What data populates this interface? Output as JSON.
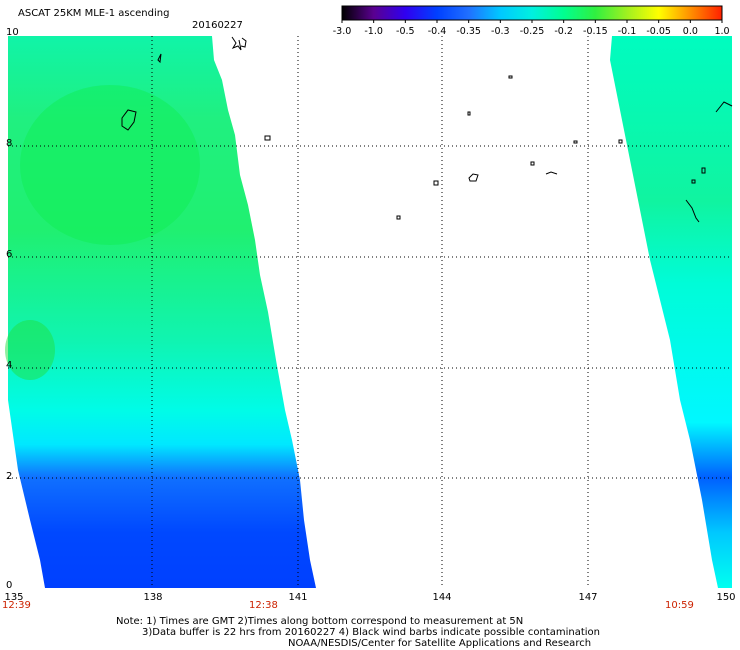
{
  "header": {
    "title": "ASCAT 25KM MLE-1 ascending",
    "date": "20160227"
  },
  "colorbar": {
    "labels": [
      "-3.0",
      "-1.0",
      "-0.5",
      "-0.4",
      "-0.35",
      "-0.3",
      "-0.25",
      "-0.2",
      "-0.15",
      "-0.1",
      "-0.05",
      "0.0",
      "1.0"
    ],
    "colors": [
      "#000000",
      "#5a0090",
      "#3000f0",
      "#0040ff",
      "#2070ff",
      "#00c8ff",
      "#00f0e0",
      "#00ff90",
      "#30f040",
      "#a0f020",
      "#ffff00",
      "#ff9000",
      "#ff2000"
    ]
  },
  "axes": {
    "x_ticks": [
      "135",
      "138",
      "141",
      "144",
      "147",
      "150"
    ],
    "y_ticks": [
      "10",
      "8",
      "6",
      "4",
      "2",
      "0"
    ],
    "x_values": [
      135,
      138,
      141,
      144,
      147,
      150
    ],
    "y_values": [
      10,
      8,
      6,
      4,
      2,
      0
    ]
  },
  "times": {
    "left": "12:39",
    "middle": "12:38",
    "right": "10:59"
  },
  "notes": {
    "line1": "Note: 1) Times are GMT 2)Times along bottom correspond to measurement at 5N",
    "line2": "3)Data buffer is 22 hrs from 20160227 4) Black wind barbs indicate possible contamination",
    "line3": "NOAA/NESDIS/Center for Satellite Applications and Research"
  },
  "colors": {
    "grid": "#000000",
    "swath_green": "#20ee70",
    "swath_cyan": "#00ffee",
    "swath_blue": "#0050ff"
  }
}
